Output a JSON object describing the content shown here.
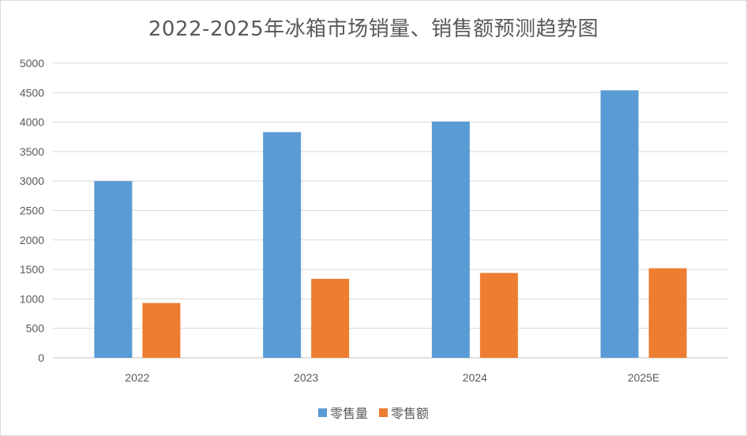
{
  "chart_data": {
    "type": "bar",
    "title": "2022-2025年冰箱市场销量、销售额预测趋势图",
    "categories": [
      "2022",
      "2023",
      "2024",
      "2025E"
    ],
    "series": [
      {
        "name": "零售量",
        "values": [
          3000,
          3830,
          4010,
          4540
        ],
        "color": "#5b9bd5"
      },
      {
        "name": "零售额",
        "values": [
          930,
          1340,
          1440,
          1520
        ],
        "color": "#ed7d31"
      }
    ],
    "ylim": [
      0,
      5000
    ],
    "yticks": [
      "0",
      "500",
      "1000",
      "1500",
      "2000",
      "2500",
      "3000",
      "3500",
      "4000",
      "4500",
      "5000"
    ],
    "grid": true,
    "legend_position": "bottom",
    "xlabel": "",
    "ylabel": ""
  }
}
